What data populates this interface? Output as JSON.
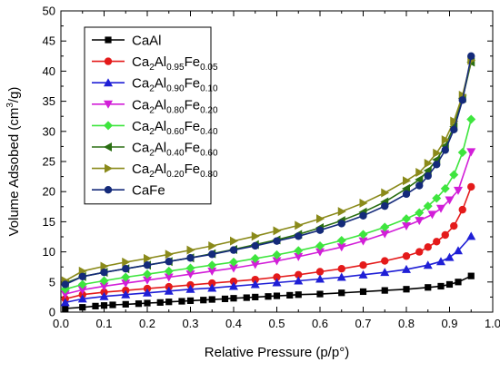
{
  "chart_data": {
    "type": "line",
    "xlabel": "Relative Pressure (p/p°)",
    "ylabel_main": "Volume Adsobed (cm",
    "ylabel_sup": "3",
    "ylabel_end": "/g)",
    "xlim": [
      0.0,
      1.0
    ],
    "ylim": [
      0,
      50
    ],
    "xticks": [
      "0.0",
      "0.1",
      "0.2",
      "0.3",
      "0.4",
      "0.5",
      "0.6",
      "0.7",
      "0.8",
      "0.9",
      "1.0"
    ],
    "yticks": [
      "0",
      "5",
      "10",
      "15",
      "20",
      "25",
      "30",
      "35",
      "40",
      "45",
      "50"
    ],
    "legend_position": "top-left",
    "series": [
      {
        "name": "CaAl",
        "label_parts": [
          [
            "CaAl",
            ""
          ]
        ],
        "color": "#000000",
        "marker": "square",
        "x": [
          0.01,
          0.05,
          0.08,
          0.1,
          0.12,
          0.15,
          0.18,
          0.2,
          0.23,
          0.25,
          0.28,
          0.3,
          0.33,
          0.35,
          0.38,
          0.4,
          0.43,
          0.45,
          0.48,
          0.5,
          0.53,
          0.55,
          0.6,
          0.65,
          0.7,
          0.75,
          0.8,
          0.85,
          0.88,
          0.9,
          0.92,
          0.95
        ],
        "y": [
          0.6,
          0.8,
          1.0,
          1.1,
          1.2,
          1.3,
          1.4,
          1.5,
          1.6,
          1.7,
          1.8,
          1.9,
          2.0,
          2.1,
          2.2,
          2.3,
          2.4,
          2.5,
          2.6,
          2.7,
          2.8,
          2.9,
          3.0,
          3.2,
          3.4,
          3.6,
          3.8,
          4.1,
          4.3,
          4.6,
          5.0,
          6.0
        ]
      },
      {
        "name": "Ca2Al0.95Fe0.05",
        "label_parts": [
          [
            "Ca",
            ""
          ],
          [
            "2",
            "sub"
          ],
          [
            "Al",
            ""
          ],
          [
            "0.95",
            "sub"
          ],
          [
            "Fe",
            ""
          ],
          [
            "0.05",
            "sub"
          ]
        ],
        "color": "#e41a1a",
        "marker": "circle",
        "x": [
          0.01,
          0.05,
          0.1,
          0.15,
          0.2,
          0.25,
          0.3,
          0.35,
          0.4,
          0.45,
          0.5,
          0.55,
          0.6,
          0.65,
          0.7,
          0.75,
          0.8,
          0.83,
          0.85,
          0.87,
          0.89,
          0.91,
          0.93,
          0.95
        ],
        "y": [
          2.2,
          2.9,
          3.3,
          3.6,
          3.9,
          4.2,
          4.5,
          4.8,
          5.1,
          5.4,
          5.8,
          6.2,
          6.7,
          7.2,
          7.8,
          8.5,
          9.3,
          10.0,
          10.8,
          11.7,
          12.8,
          14.3,
          17.0,
          20.8
        ]
      },
      {
        "name": "Ca2Al0.90Fe0.10",
        "label_parts": [
          [
            "Ca",
            ""
          ],
          [
            "2",
            "sub"
          ],
          [
            "Al",
            ""
          ],
          [
            "0.90",
            "sub"
          ],
          [
            "Fe",
            ""
          ],
          [
            "0.10",
            "sub"
          ]
        ],
        "color": "#1f1fd6",
        "marker": "triangle-up",
        "x": [
          0.01,
          0.05,
          0.1,
          0.15,
          0.2,
          0.25,
          0.3,
          0.35,
          0.4,
          0.45,
          0.5,
          0.55,
          0.6,
          0.65,
          0.7,
          0.75,
          0.8,
          0.85,
          0.88,
          0.9,
          0.92,
          0.95
        ],
        "y": [
          1.6,
          2.2,
          2.6,
          2.9,
          3.2,
          3.5,
          3.8,
          4.0,
          4.3,
          4.6,
          4.9,
          5.2,
          5.5,
          5.8,
          6.2,
          6.6,
          7.1,
          7.8,
          8.4,
          9.1,
          10.2,
          12.6
        ]
      },
      {
        "name": "Ca2Al0.80Fe0.20",
        "label_parts": [
          [
            "Ca",
            ""
          ],
          [
            "2",
            "sub"
          ],
          [
            "Al",
            ""
          ],
          [
            "0.80",
            "sub"
          ],
          [
            "Fe",
            ""
          ],
          [
            "0.20",
            "sub"
          ]
        ],
        "color": "#d21ed8",
        "marker": "triangle-down",
        "x": [
          0.01,
          0.05,
          0.1,
          0.15,
          0.2,
          0.25,
          0.3,
          0.35,
          0.4,
          0.45,
          0.5,
          0.55,
          0.6,
          0.65,
          0.7,
          0.75,
          0.8,
          0.83,
          0.86,
          0.88,
          0.9,
          0.92,
          0.95
        ],
        "y": [
          3.0,
          3.7,
          4.3,
          4.8,
          5.3,
          5.8,
          6.3,
          6.8,
          7.3,
          7.9,
          8.5,
          9.2,
          10.0,
          10.8,
          11.8,
          13.0,
          14.3,
          15.2,
          16.2,
          17.2,
          18.6,
          20.2,
          26.6
        ]
      },
      {
        "name": "Ca2Al0.60Fe0.40",
        "label_parts": [
          [
            "Ca",
            ""
          ],
          [
            "2",
            "sub"
          ],
          [
            "Al",
            ""
          ],
          [
            "0.60",
            "sub"
          ],
          [
            "Fe",
            ""
          ],
          [
            "0.40",
            "sub"
          ]
        ],
        "color": "#3ee53e",
        "marker": "diamond",
        "x": [
          0.01,
          0.05,
          0.1,
          0.15,
          0.2,
          0.25,
          0.3,
          0.35,
          0.4,
          0.45,
          0.5,
          0.55,
          0.6,
          0.65,
          0.7,
          0.75,
          0.8,
          0.83,
          0.85,
          0.87,
          0.89,
          0.91,
          0.93,
          0.95
        ],
        "y": [
          3.8,
          4.6,
          5.2,
          5.8,
          6.3,
          6.8,
          7.3,
          7.8,
          8.3,
          8.9,
          9.5,
          10.2,
          11.0,
          11.9,
          12.9,
          14.1,
          15.5,
          16.5,
          17.6,
          18.9,
          20.5,
          22.8,
          26.5,
          32.0
        ]
      },
      {
        "name": "Ca2Al0.40Fe0.60",
        "label_parts": [
          [
            "Ca",
            ""
          ],
          [
            "2",
            "sub"
          ],
          [
            "Al",
            ""
          ],
          [
            "0.40",
            "sub"
          ],
          [
            "Fe",
            ""
          ],
          [
            "0.60",
            "sub"
          ]
        ],
        "color": "#2a6e12",
        "marker": "triangle-left",
        "x": [
          0.01,
          0.05,
          0.1,
          0.15,
          0.2,
          0.25,
          0.3,
          0.35,
          0.4,
          0.45,
          0.5,
          0.55,
          0.6,
          0.65,
          0.7,
          0.75,
          0.8,
          0.83,
          0.85,
          0.87,
          0.89,
          0.91,
          0.93,
          0.95
        ],
        "y": [
          4.8,
          5.9,
          6.6,
          7.2,
          7.8,
          8.4,
          9.0,
          9.7,
          10.4,
          11.2,
          12.0,
          12.9,
          14.0,
          15.2,
          16.6,
          18.3,
          20.5,
          22.0,
          23.5,
          25.3,
          27.6,
          30.8,
          35.5,
          41.5
        ]
      },
      {
        "name": "Ca2Al0.20Fe0.80",
        "label_parts": [
          [
            "Ca",
            ""
          ],
          [
            "2",
            "sub"
          ],
          [
            "Al",
            ""
          ],
          [
            "0.20",
            "sub"
          ],
          [
            "Fe",
            ""
          ],
          [
            "0.80",
            "sub"
          ]
        ],
        "color": "#8a8a1a",
        "marker": "triangle-right",
        "x": [
          0.01,
          0.05,
          0.1,
          0.15,
          0.2,
          0.25,
          0.3,
          0.35,
          0.4,
          0.45,
          0.5,
          0.55,
          0.6,
          0.65,
          0.7,
          0.75,
          0.8,
          0.83,
          0.85,
          0.87,
          0.89,
          0.91,
          0.93,
          0.95
        ],
        "y": [
          5.2,
          6.8,
          7.6,
          8.3,
          8.9,
          9.6,
          10.3,
          11.0,
          11.8,
          12.6,
          13.5,
          14.4,
          15.5,
          16.7,
          18.1,
          19.8,
          21.8,
          23.2,
          24.7,
          26.4,
          28.6,
          31.7,
          36.0,
          41.8
        ]
      },
      {
        "name": "CaFe",
        "label_parts": [
          [
            "CaFe",
            ""
          ]
        ],
        "color": "#142a7a",
        "marker": "circle",
        "x": [
          0.01,
          0.05,
          0.1,
          0.15,
          0.2,
          0.25,
          0.3,
          0.35,
          0.4,
          0.45,
          0.5,
          0.55,
          0.6,
          0.65,
          0.7,
          0.75,
          0.8,
          0.83,
          0.85,
          0.87,
          0.89,
          0.91,
          0.93,
          0.95
        ],
        "y": [
          4.6,
          5.9,
          6.6,
          7.2,
          7.8,
          8.4,
          9.0,
          9.6,
          10.3,
          11.0,
          11.8,
          12.6,
          13.6,
          14.7,
          16.0,
          17.6,
          19.6,
          21.0,
          22.6,
          24.5,
          26.9,
          30.3,
          35.2,
          42.5
        ]
      }
    ]
  }
}
